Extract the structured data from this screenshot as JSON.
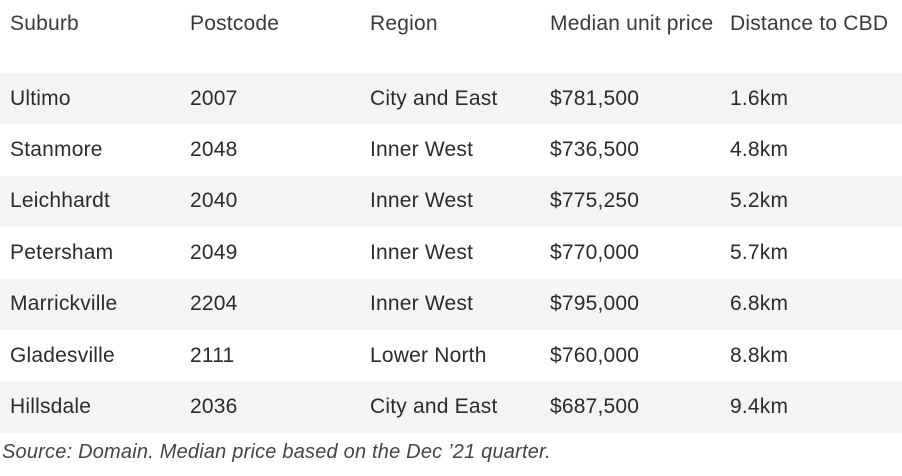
{
  "table": {
    "headers": [
      "Suburb",
      "Postcode",
      "Region",
      "Median unit price",
      "Distance to CBD"
    ],
    "rows": [
      [
        "Ultimo",
        "2007",
        "City and East",
        "$781,500",
        "1.6km"
      ],
      [
        "Stanmore",
        "2048",
        "Inner West",
        "$736,500",
        "4.8km"
      ],
      [
        "Leichhardt",
        "2040",
        "Inner West",
        "$775,250",
        "5.2km"
      ],
      [
        "Petersham",
        "2049",
        "Inner West",
        "$770,000",
        "5.7km"
      ],
      [
        "Marrickville",
        "2204",
        "Inner West",
        "$795,000",
        "6.8km"
      ],
      [
        "Gladesville",
        "2111",
        "Lower North",
        "$760,000",
        "8.8km"
      ],
      [
        "Hillsdale",
        "2036",
        "City and East",
        "$687,500",
        "9.4km"
      ]
    ]
  },
  "source_note": "Source: Domain. Median price based on the Dec ’21 quarter.",
  "colors": {
    "shaded_row": "#f2f4f5",
    "text": "#2b2b2b"
  }
}
